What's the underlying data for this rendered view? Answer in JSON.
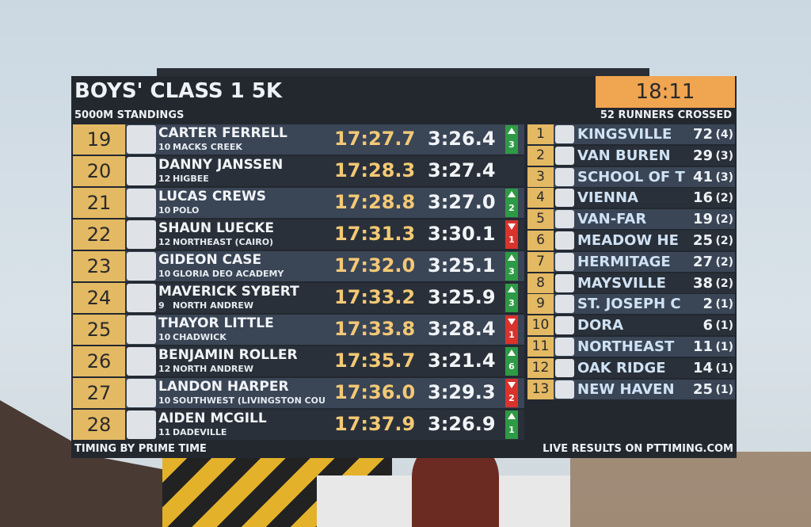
{
  "board": {
    "title": "BOYS' CLASS 1 5K",
    "clock": "18:11",
    "subtitle": "5000M STANDINGS",
    "crossed": "52 RUNNERS CROSSED",
    "runners": [
      {
        "place": "19",
        "name": "CARTER FERRELL",
        "grade": "10",
        "school": "MACKS CREEK",
        "time": "17:27.7",
        "split": "3:26.4",
        "dir": "up",
        "change": "3"
      },
      {
        "place": "20",
        "name": "DANNY JANSSEN",
        "grade": "12",
        "school": "HIGBEE",
        "time": "17:28.3",
        "split": "3:27.4",
        "dir": null,
        "change": null
      },
      {
        "place": "21",
        "name": "LUCAS CREWS",
        "grade": "10",
        "school": "POLO",
        "time": "17:28.8",
        "split": "3:27.0",
        "dir": "up",
        "change": "2"
      },
      {
        "place": "22",
        "name": "SHAUN LUECKE",
        "grade": "12",
        "school": "NORTHEAST (CAIRO)",
        "time": "17:31.3",
        "split": "3:30.1",
        "dir": "down",
        "change": "1"
      },
      {
        "place": "23",
        "name": "GIDEON CASE",
        "grade": "10",
        "school": "GLORIA DEO ACADEMY",
        "time": "17:32.0",
        "split": "3:25.1",
        "dir": "up",
        "change": "3"
      },
      {
        "place": "24",
        "name": "MAVERICK SYBERT",
        "grade": "9",
        "school": "NORTH ANDREW",
        "time": "17:33.2",
        "split": "3:25.9",
        "dir": "up",
        "change": "3"
      },
      {
        "place": "25",
        "name": "THAYOR LITTLE",
        "grade": "10",
        "school": "CHADWICK",
        "time": "17:33.8",
        "split": "3:28.4",
        "dir": "down",
        "change": "1"
      },
      {
        "place": "26",
        "name": "BENJAMIN ROLLER",
        "grade": "12",
        "school": "NORTH ANDREW",
        "time": "17:35.7",
        "split": "3:21.4",
        "dir": "up",
        "change": "6"
      },
      {
        "place": "27",
        "name": "LANDON HARPER",
        "grade": "10",
        "school": "SOUTHWEST (LIVINGSTON COU",
        "time": "17:36.0",
        "split": "3:29.3",
        "dir": "down",
        "change": "2"
      },
      {
        "place": "28",
        "name": "AIDEN MCGILL",
        "grade": "11",
        "school": "DADEVILLE",
        "time": "17:37.9",
        "split": "3:26.9",
        "dir": "up",
        "change": "1"
      }
    ],
    "teams": [
      {
        "place": "1",
        "name": "KINGSVILLE",
        "score": "72",
        "count": "(4)"
      },
      {
        "place": "2",
        "name": "VAN BUREN",
        "score": "29",
        "count": "(3)"
      },
      {
        "place": "3",
        "name": "SCHOOL OF T",
        "score": "41",
        "count": "(3)"
      },
      {
        "place": "4",
        "name": "VIENNA",
        "score": "16",
        "count": "(2)"
      },
      {
        "place": "5",
        "name": "VAN-FAR",
        "score": "19",
        "count": "(2)"
      },
      {
        "place": "6",
        "name": "MEADOW HE",
        "score": "25",
        "count": "(2)"
      },
      {
        "place": "7",
        "name": "HERMITAGE",
        "score": "27",
        "count": "(2)"
      },
      {
        "place": "8",
        "name": "MAYSVILLE",
        "score": "38",
        "count": "(2)"
      },
      {
        "place": "9",
        "name": "ST. JOSEPH C",
        "score": "2",
        "count": "(1)"
      },
      {
        "place": "10",
        "name": "DORA",
        "score": "6",
        "count": "(1)"
      },
      {
        "place": "11",
        "name": "NORTHEAST",
        "score": "11",
        "count": "(1)"
      },
      {
        "place": "12",
        "name": "OAK RIDGE",
        "score": "14",
        "count": "(1)"
      },
      {
        "place": "13",
        "name": "NEW HAVEN",
        "score": "25",
        "count": "(1)"
      }
    ],
    "footer_left": "TIMING BY PRIME TIME",
    "footer_right": "LIVE RESULTS ON PTTIMING.COM"
  }
}
